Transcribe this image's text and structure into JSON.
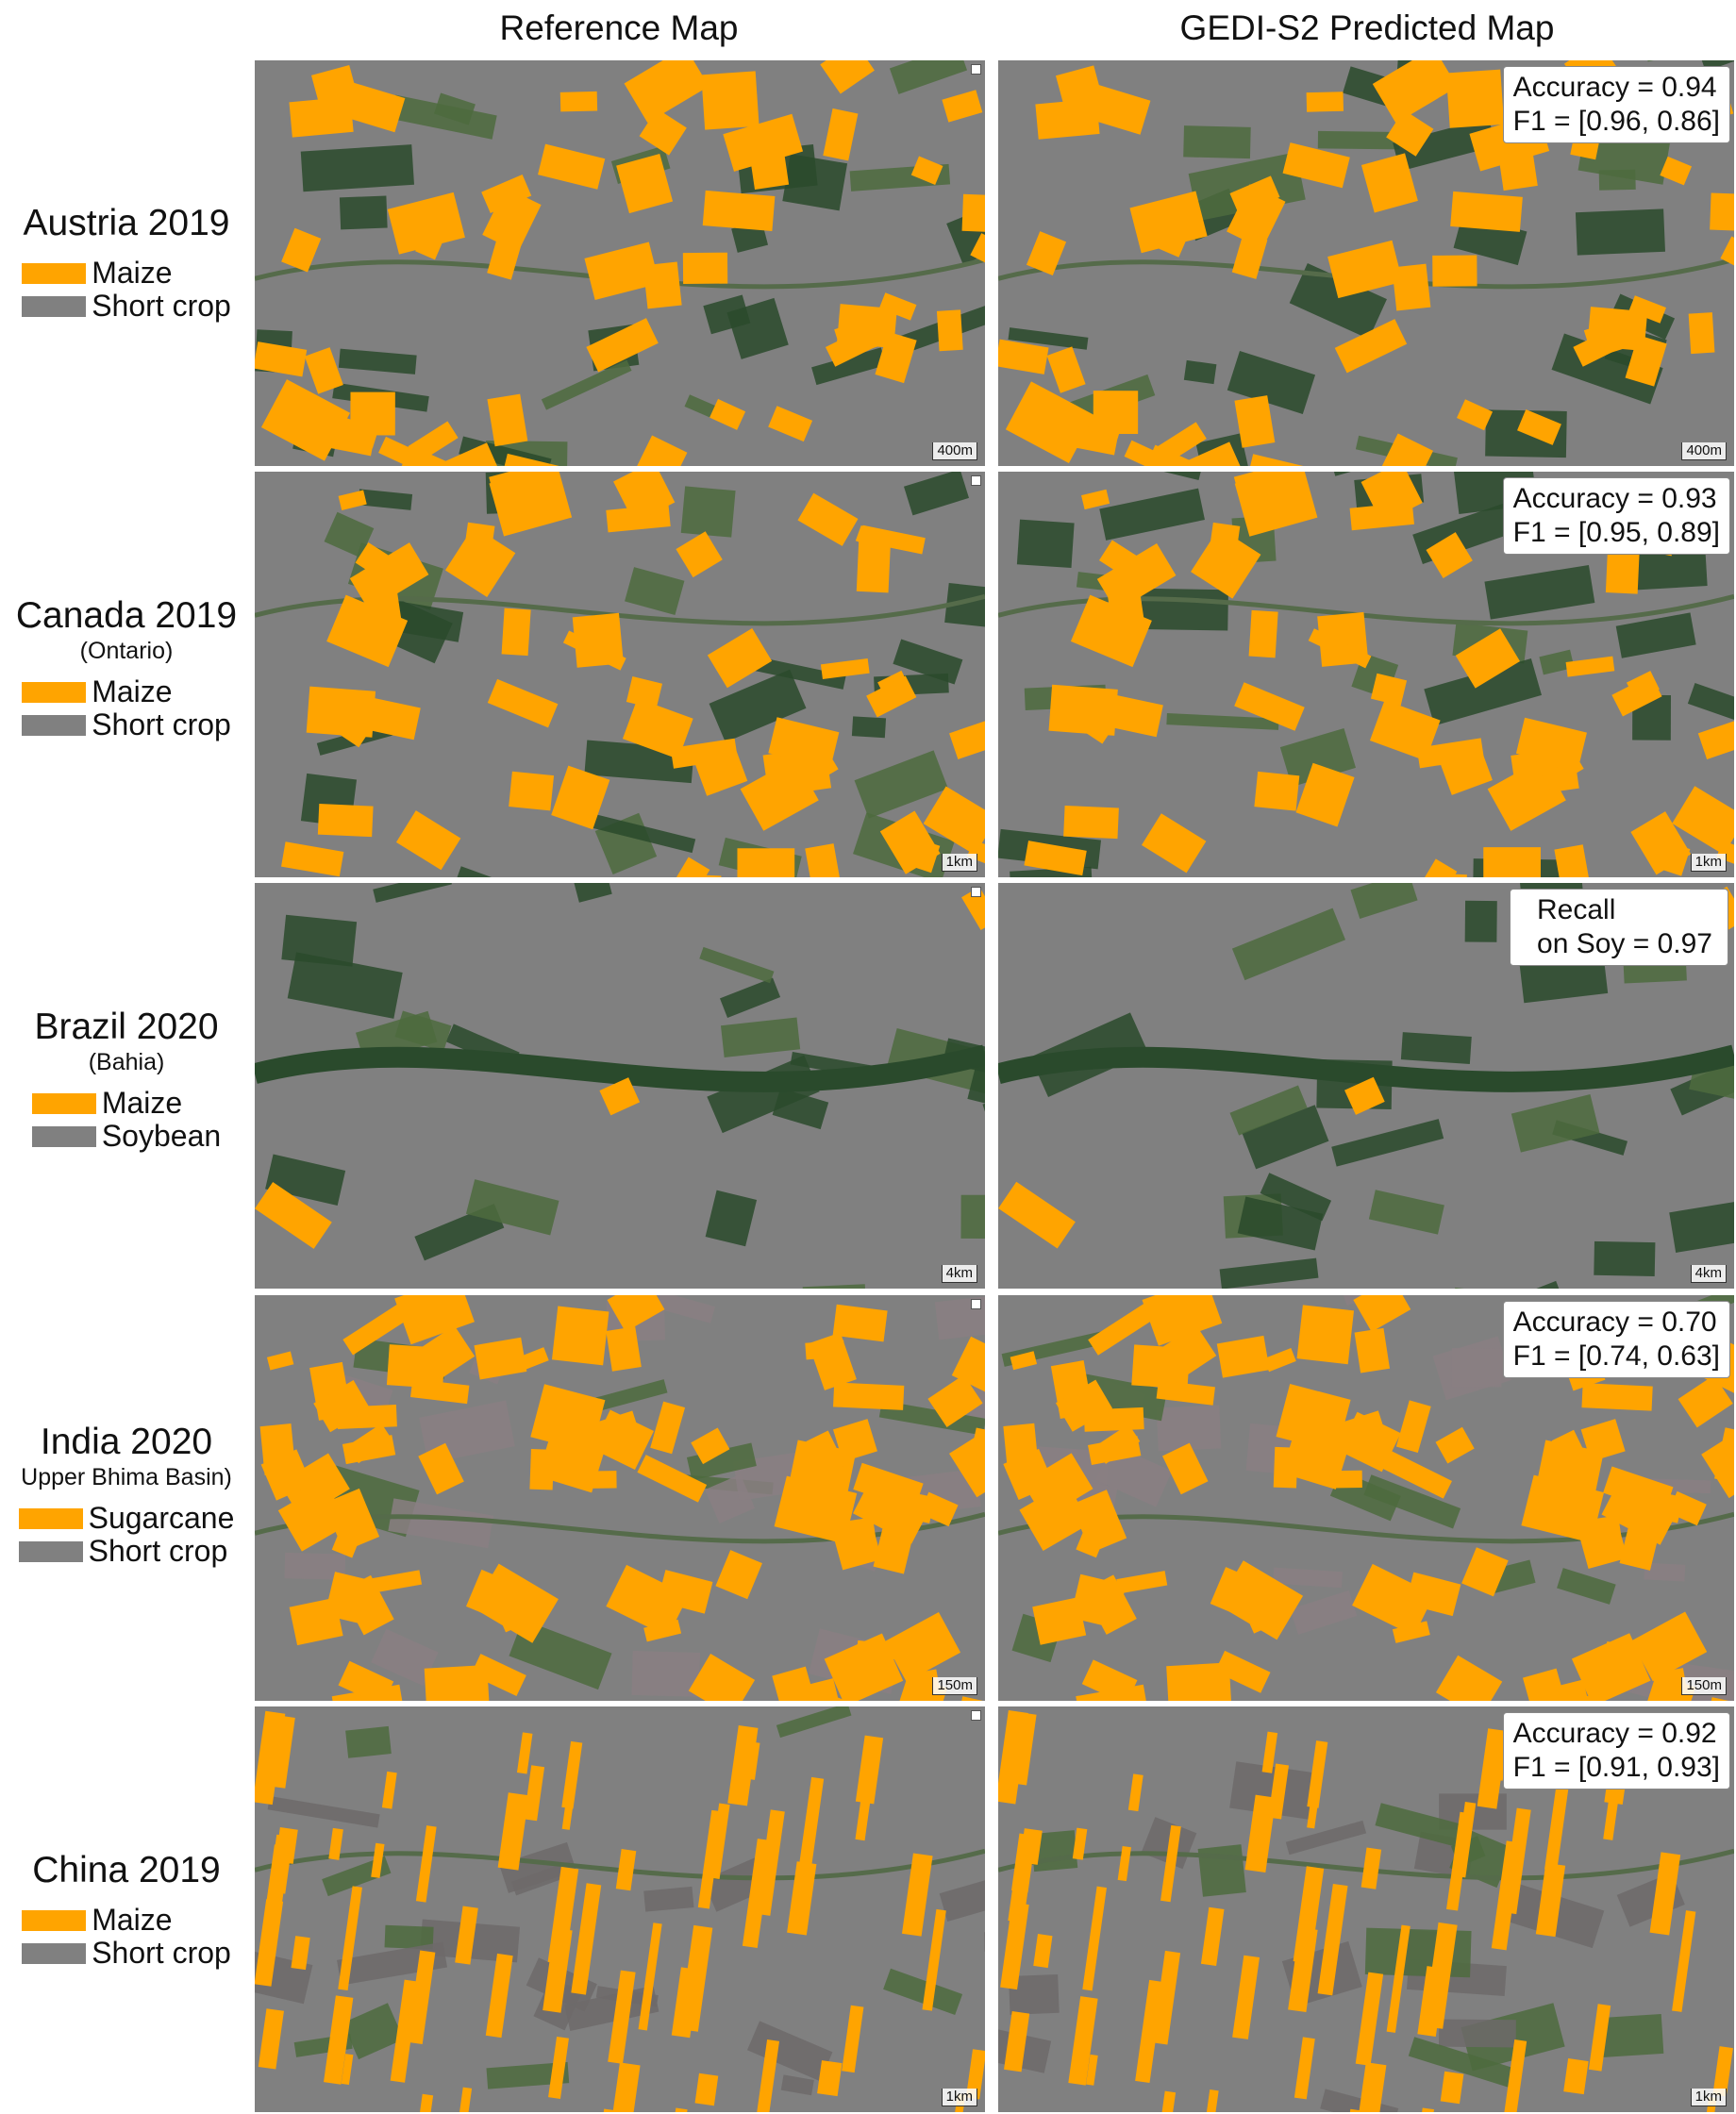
{
  "headers": {
    "left": "Reference Map",
    "right": "GEDI-S2 Predicted Map"
  },
  "colors": {
    "crop_a": "#ffa400",
    "crop_b": "#808080",
    "forest": "#2a4a2c",
    "field_green": "#4e6b3e",
    "urban": "#8a7f82"
  },
  "rows": [
    {
      "title": "Austria 2019",
      "subtitle": "",
      "legend": [
        {
          "label": "Maize",
          "color": "#ffa400"
        },
        {
          "label": "Short crop",
          "color": "#808080"
        }
      ],
      "metrics": {
        "line1": "Accuracy = 0.94",
        "line2": "F1 = [0.96, 0.86]"
      },
      "scale": "400m",
      "orange_share": 0.35
    },
    {
      "title": "Canada 2019",
      "subtitle": "(Ontario)",
      "legend": [
        {
          "label": "Maize",
          "color": "#ffa400"
        },
        {
          "label": "Short crop",
          "color": "#808080"
        }
      ],
      "metrics": {
        "line1": "Accuracy = 0.93",
        "line2": "F1 = [0.95, 0.89]"
      },
      "scale": "1km",
      "orange_share": 0.35
    },
    {
      "title": "Brazil 2020",
      "subtitle": "(Bahia)",
      "legend": [
        {
          "label": "Maize",
          "color": "#ffa400"
        },
        {
          "label": "Soybean",
          "color": "#808080"
        }
      ],
      "metrics": {
        "line1": "Recall",
        "line2": "on Soy = 0.97"
      },
      "scale": "4km",
      "orange_share": 0.02
    },
    {
      "title": "India 2020",
      "subtitle": "Upper Bhima Basin)",
      "legend": [
        {
          "label": "Sugarcane",
          "color": "#ffa400"
        },
        {
          "label": "Short crop",
          "color": "#808080"
        }
      ],
      "metrics": {
        "line1": "Accuracy = 0.70",
        "line2": "F1 = [0.74, 0.63]"
      },
      "scale": "150m",
      "orange_share": 0.55
    },
    {
      "title": "China 2019",
      "subtitle": "",
      "legend": [
        {
          "label": "Maize",
          "color": "#ffa400"
        },
        {
          "label": "Short crop",
          "color": "#808080"
        }
      ],
      "metrics": {
        "line1": "Accuracy = 0.92",
        "line2": "F1 = [0.91, 0.93]"
      },
      "scale": "1km",
      "orange_share": 0.4
    }
  ]
}
